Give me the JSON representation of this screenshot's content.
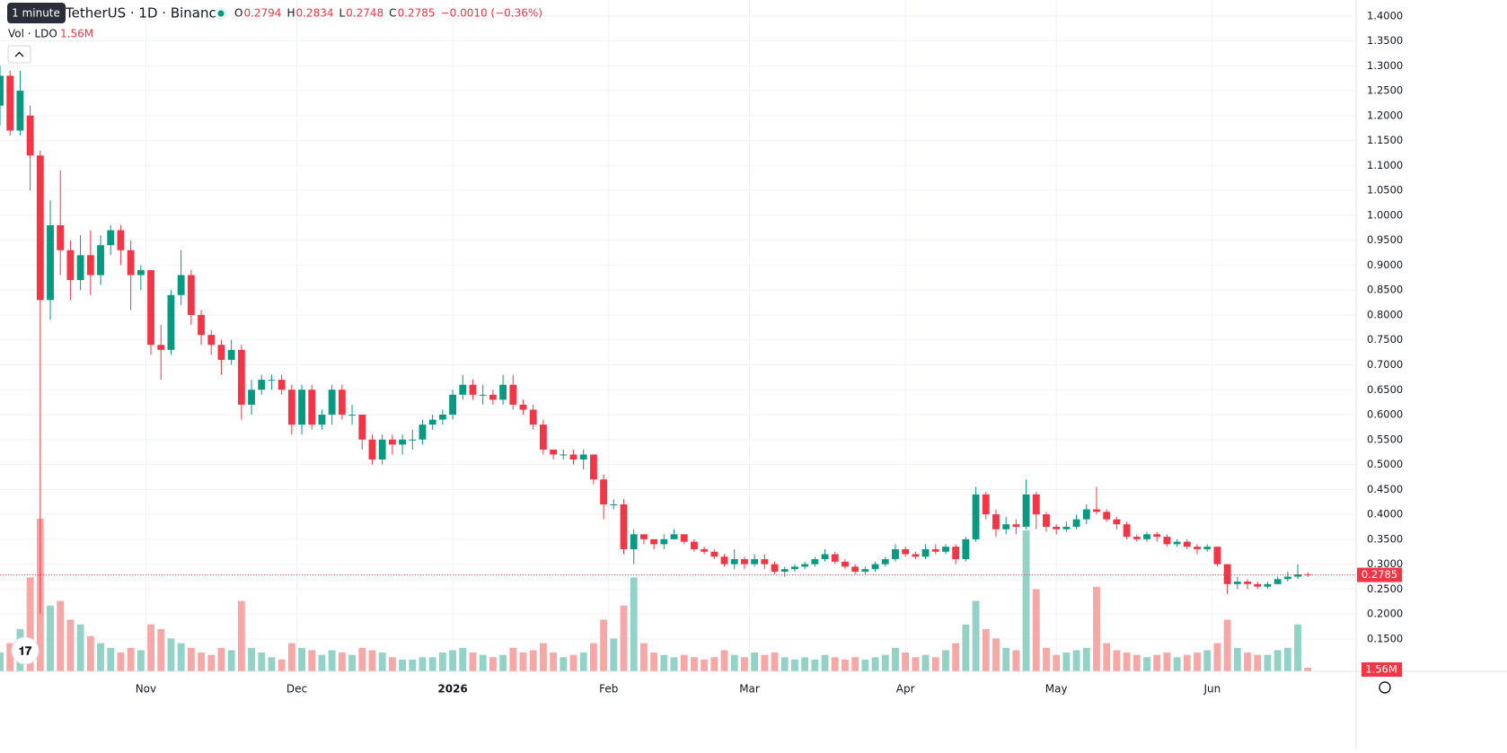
{
  "chart_data": {
    "type": "candlestick",
    "title": "TetherUS · 1D · Binance",
    "tooltip": "1 minute",
    "ohlc_keys": [
      "O",
      "H",
      "L",
      "C"
    ],
    "change": "−0.0010 (−0.36%)",
    "volume_title": "Vol · LDO",
    "volume_label": "1.56M",
    "up_color": "#089981",
    "down_color": "#f23645",
    "up_volume_color": "#92d2c7",
    "down_volume_color": "#f7a8a6",
    "xlim": [
      0,
      269.6
    ],
    "ylim": [
      0.085,
      1.432
    ],
    "grid": true,
    "xticks": [
      {
        "value": 29,
        "label": "Nov"
      },
      {
        "value": 59,
        "label": "Dec"
      },
      {
        "value": 90,
        "label": "2026"
      },
      {
        "value": 121,
        "label": "Feb"
      },
      {
        "value": 149,
        "label": "Mar"
      },
      {
        "value": 180,
        "label": "Apr"
      },
      {
        "value": 210,
        "label": "May"
      },
      {
        "value": 241,
        "label": "Jun"
      }
    ],
    "yticks": [
      {
        "value": 0.15,
        "label": "0.1500"
      },
      {
        "value": 0.2,
        "label": "0.2000"
      },
      {
        "value": 0.25,
        "label": "0.2500"
      },
      {
        "value": 0.3,
        "label": "0.3000"
      },
      {
        "value": 0.35,
        "label": "0.3500"
      },
      {
        "value": 0.4,
        "label": "0.4000"
      },
      {
        "value": 0.45,
        "label": "0.4500"
      },
      {
        "value": 0.5,
        "label": "0.5000"
      },
      {
        "value": 0.55,
        "label": "0.5500"
      },
      {
        "value": 0.6,
        "label": "0.6000"
      },
      {
        "value": 0.65,
        "label": "0.6500"
      },
      {
        "value": 0.7,
        "label": "0.7000"
      },
      {
        "value": 0.75,
        "label": "0.7500"
      },
      {
        "value": 0.8,
        "label": "0.8000"
      },
      {
        "value": 0.85,
        "label": "0.8500"
      },
      {
        "value": 0.9,
        "label": "0.9000"
      },
      {
        "value": 0.95,
        "label": "0.9500"
      },
      {
        "value": 1.0,
        "label": "1.0000"
      },
      {
        "value": 1.05,
        "label": "1.0500"
      },
      {
        "value": 1.1,
        "label": "1.1000"
      },
      {
        "value": 1.15,
        "label": "1.1500"
      },
      {
        "value": 1.2,
        "label": "1.2000"
      },
      {
        "value": 1.25,
        "label": "1.2500"
      },
      {
        "value": 1.3,
        "label": "1.3000"
      },
      {
        "value": 1.35,
        "label": "1.3500"
      },
      {
        "value": 1.4,
        "label": "1.4000"
      }
    ],
    "x": [
      0,
      2,
      4,
      6,
      8,
      10,
      12,
      14,
      16,
      18,
      20,
      22,
      24,
      26,
      28,
      30,
      32,
      34,
      36,
      38,
      40,
      42,
      44,
      46,
      48,
      50,
      52,
      54,
      56,
      58,
      60,
      62,
      64,
      66,
      68,
      70,
      72,
      74,
      76,
      78,
      80,
      82,
      84,
      86,
      88,
      90,
      92,
      94,
      96,
      98,
      100,
      102,
      104,
      106,
      108,
      110,
      112,
      114,
      116,
      118,
      120,
      122,
      124,
      126,
      128,
      130,
      132,
      134,
      136,
      138,
      140,
      142,
      144,
      146,
      148,
      150,
      152,
      154,
      156,
      158,
      160,
      162,
      164,
      166,
      168,
      170,
      172,
      174,
      176,
      178,
      180,
      182,
      184,
      186,
      188,
      190,
      192,
      194,
      196,
      198,
      200,
      202,
      204,
      206,
      208,
      210,
      212,
      214,
      216,
      218,
      220,
      222,
      224,
      226,
      228,
      230,
      232,
      234,
      236,
      238,
      240,
      242,
      244,
      246,
      248,
      250,
      252,
      254,
      256,
      258,
      260
    ],
    "ohlc": [
      [
        1.22,
        1.3,
        1.18,
        1.28
      ],
      [
        1.28,
        1.29,
        1.16,
        1.17
      ],
      [
        1.17,
        1.29,
        1.16,
        1.25
      ],
      [
        1.2,
        1.22,
        1.05,
        1.12
      ],
      [
        1.12,
        1.13,
        0.2,
        0.83
      ],
      [
        0.83,
        1.03,
        0.79,
        0.98
      ],
      [
        0.98,
        1.09,
        0.88,
        0.93
      ],
      [
        0.93,
        0.95,
        0.83,
        0.87
      ],
      [
        0.87,
        0.96,
        0.85,
        0.92
      ],
      [
        0.92,
        0.97,
        0.84,
        0.88
      ],
      [
        0.88,
        0.96,
        0.86,
        0.94
      ],
      [
        0.94,
        0.98,
        0.92,
        0.97
      ],
      [
        0.97,
        0.98,
        0.9,
        0.93
      ],
      [
        0.93,
        0.95,
        0.81,
        0.88
      ],
      [
        0.88,
        0.9,
        0.85,
        0.89
      ],
      [
        0.89,
        0.89,
        0.72,
        0.74
      ],
      [
        0.74,
        0.78,
        0.67,
        0.73
      ],
      [
        0.73,
        0.85,
        0.72,
        0.84
      ],
      [
        0.84,
        0.93,
        0.82,
        0.88
      ],
      [
        0.88,
        0.89,
        0.78,
        0.8
      ],
      [
        0.8,
        0.81,
        0.74,
        0.76
      ],
      [
        0.76,
        0.77,
        0.72,
        0.74
      ],
      [
        0.74,
        0.75,
        0.68,
        0.71
      ],
      [
        0.71,
        0.75,
        0.7,
        0.73
      ],
      [
        0.73,
        0.74,
        0.59,
        0.62
      ],
      [
        0.62,
        0.67,
        0.6,
        0.65
      ],
      [
        0.65,
        0.68,
        0.64,
        0.67
      ],
      [
        0.67,
        0.68,
        0.65,
        0.67
      ],
      [
        0.67,
        0.68,
        0.64,
        0.65
      ],
      [
        0.65,
        0.66,
        0.56,
        0.58
      ],
      [
        0.58,
        0.66,
        0.56,
        0.65
      ],
      [
        0.65,
        0.66,
        0.57,
        0.58
      ],
      [
        0.58,
        0.61,
        0.57,
        0.6
      ],
      [
        0.6,
        0.66,
        0.58,
        0.65
      ],
      [
        0.65,
        0.66,
        0.59,
        0.6
      ],
      [
        0.6,
        0.62,
        0.58,
        0.6
      ],
      [
        0.6,
        0.6,
        0.53,
        0.55
      ],
      [
        0.55,
        0.56,
        0.5,
        0.51
      ],
      [
        0.51,
        0.56,
        0.5,
        0.55
      ],
      [
        0.55,
        0.56,
        0.52,
        0.54
      ],
      [
        0.54,
        0.56,
        0.52,
        0.55
      ],
      [
        0.55,
        0.57,
        0.53,
        0.55
      ],
      [
        0.55,
        0.59,
        0.54,
        0.58
      ],
      [
        0.58,
        0.6,
        0.57,
        0.59
      ],
      [
        0.59,
        0.61,
        0.58,
        0.6
      ],
      [
        0.6,
        0.65,
        0.59,
        0.64
      ],
      [
        0.64,
        0.68,
        0.63,
        0.66
      ],
      [
        0.66,
        0.67,
        0.63,
        0.64
      ],
      [
        0.64,
        0.66,
        0.62,
        0.64
      ],
      [
        0.64,
        0.65,
        0.62,
        0.63
      ],
      [
        0.63,
        0.68,
        0.62,
        0.66
      ],
      [
        0.66,
        0.68,
        0.61,
        0.62
      ],
      [
        0.62,
        0.63,
        0.6,
        0.61
      ],
      [
        0.61,
        0.62,
        0.57,
        0.58
      ],
      [
        0.58,
        0.59,
        0.52,
        0.53
      ],
      [
        0.53,
        0.53,
        0.51,
        0.52
      ],
      [
        0.52,
        0.53,
        0.51,
        0.52
      ],
      [
        0.52,
        0.53,
        0.5,
        0.51
      ],
      [
        0.51,
        0.53,
        0.49,
        0.52
      ],
      [
        0.52,
        0.52,
        0.46,
        0.47
      ],
      [
        0.47,
        0.48,
        0.39,
        0.42
      ],
      [
        0.42,
        0.43,
        0.41,
        0.42
      ],
      [
        0.42,
        0.43,
        0.32,
        0.33
      ],
      [
        0.33,
        0.37,
        0.3,
        0.36
      ],
      [
        0.36,
        0.36,
        0.34,
        0.35
      ],
      [
        0.35,
        0.35,
        0.33,
        0.34
      ],
      [
        0.34,
        0.36,
        0.33,
        0.35
      ],
      [
        0.35,
        0.37,
        0.35,
        0.36
      ],
      [
        0.36,
        0.36,
        0.34,
        0.345
      ],
      [
        0.345,
        0.35,
        0.325,
        0.33
      ],
      [
        0.33,
        0.335,
        0.32,
        0.325
      ],
      [
        0.325,
        0.33,
        0.31,
        0.315
      ],
      [
        0.315,
        0.32,
        0.295,
        0.3
      ],
      [
        0.3,
        0.33,
        0.29,
        0.31
      ],
      [
        0.31,
        0.315,
        0.29,
        0.3
      ],
      [
        0.3,
        0.32,
        0.295,
        0.31
      ],
      [
        0.31,
        0.32,
        0.29,
        0.3
      ],
      [
        0.3,
        0.305,
        0.28,
        0.285
      ],
      [
        0.285,
        0.295,
        0.275,
        0.29
      ],
      [
        0.29,
        0.3,
        0.285,
        0.295
      ],
      [
        0.295,
        0.305,
        0.29,
        0.3
      ],
      [
        0.3,
        0.315,
        0.295,
        0.31
      ],
      [
        0.31,
        0.33,
        0.305,
        0.32
      ],
      [
        0.32,
        0.325,
        0.3,
        0.305
      ],
      [
        0.305,
        0.31,
        0.29,
        0.295
      ],
      [
        0.295,
        0.3,
        0.28,
        0.285
      ],
      [
        0.285,
        0.295,
        0.28,
        0.29
      ],
      [
        0.29,
        0.305,
        0.285,
        0.3
      ],
      [
        0.3,
        0.315,
        0.295,
        0.31
      ],
      [
        0.31,
        0.34,
        0.305,
        0.33
      ],
      [
        0.33,
        0.335,
        0.315,
        0.32
      ],
      [
        0.32,
        0.325,
        0.31,
        0.315
      ],
      [
        0.315,
        0.34,
        0.31,
        0.33
      ],
      [
        0.33,
        0.34,
        0.32,
        0.325
      ],
      [
        0.325,
        0.34,
        0.32,
        0.335
      ],
      [
        0.335,
        0.34,
        0.3,
        0.31
      ],
      [
        0.31,
        0.355,
        0.305,
        0.35
      ],
      [
        0.35,
        0.455,
        0.345,
        0.44
      ],
      [
        0.44,
        0.445,
        0.39,
        0.4
      ],
      [
        0.4,
        0.41,
        0.355,
        0.37
      ],
      [
        0.37,
        0.395,
        0.36,
        0.38
      ],
      [
        0.38,
        0.39,
        0.36,
        0.375
      ],
      [
        0.375,
        0.47,
        0.37,
        0.44
      ],
      [
        0.44,
        0.445,
        0.37,
        0.4
      ],
      [
        0.4,
        0.405,
        0.365,
        0.375
      ],
      [
        0.375,
        0.38,
        0.36,
        0.37
      ],
      [
        0.37,
        0.385,
        0.365,
        0.375
      ],
      [
        0.375,
        0.4,
        0.37,
        0.39
      ],
      [
        0.39,
        0.42,
        0.38,
        0.41
      ],
      [
        0.41,
        0.455,
        0.4,
        0.405
      ],
      [
        0.405,
        0.41,
        0.385,
        0.39
      ],
      [
        0.39,
        0.395,
        0.37,
        0.38
      ],
      [
        0.38,
        0.385,
        0.35,
        0.355
      ],
      [
        0.355,
        0.36,
        0.345,
        0.35
      ],
      [
        0.35,
        0.365,
        0.345,
        0.36
      ],
      [
        0.36,
        0.365,
        0.345,
        0.355
      ],
      [
        0.355,
        0.36,
        0.335,
        0.34
      ],
      [
        0.34,
        0.35,
        0.335,
        0.345
      ],
      [
        0.345,
        0.35,
        0.33,
        0.335
      ],
      [
        0.335,
        0.34,
        0.32,
        0.33
      ],
      [
        0.33,
        0.34,
        0.325,
        0.335
      ],
      [
        0.335,
        0.335,
        0.295,
        0.3
      ],
      [
        0.3,
        0.3,
        0.24,
        0.26
      ],
      [
        0.26,
        0.275,
        0.25,
        0.265
      ],
      [
        0.265,
        0.27,
        0.25,
        0.26
      ],
      [
        0.26,
        0.265,
        0.25,
        0.255
      ],
      [
        0.255,
        0.265,
        0.25,
        0.26
      ],
      [
        0.26,
        0.275,
        0.26,
        0.27
      ],
      [
        0.27,
        0.285,
        0.265,
        0.275
      ],
      [
        0.275,
        0.3,
        0.27,
        0.2794
      ],
      [
        0.2794,
        0.2834,
        0.2748,
        0.2785
      ]
    ],
    "volume": [
      8,
      12,
      18,
      40,
      65,
      28,
      30,
      22,
      20,
      15,
      12,
      10,
      8,
      10,
      9,
      20,
      18,
      14,
      12,
      10,
      8,
      7,
      10,
      9,
      30,
      10,
      8,
      6,
      5,
      12,
      10,
      9,
      7,
      9,
      8,
      7,
      10,
      9,
      8,
      6,
      5,
      5,
      6,
      6,
      8,
      9,
      10,
      8,
      7,
      6,
      7,
      10,
      8,
      9,
      12,
      8,
      6,
      7,
      8,
      12,
      22,
      14,
      28,
      40,
      12,
      8,
      7,
      6,
      7,
      6,
      5,
      6,
      9,
      7,
      6,
      8,
      7,
      8,
      6,
      5,
      6,
      5,
      7,
      6,
      5,
      6,
      5,
      6,
      7,
      10,
      8,
      6,
      7,
      6,
      9,
      12,
      20,
      30,
      18,
      14,
      10,
      9,
      60,
      35,
      10,
      7,
      8,
      9,
      10,
      36,
      12,
      9,
      8,
      7,
      6,
      7,
      8,
      6,
      7,
      8,
      9,
      12,
      22,
      10,
      8,
      7,
      7,
      9,
      10,
      20,
      1.56
    ]
  }
}
